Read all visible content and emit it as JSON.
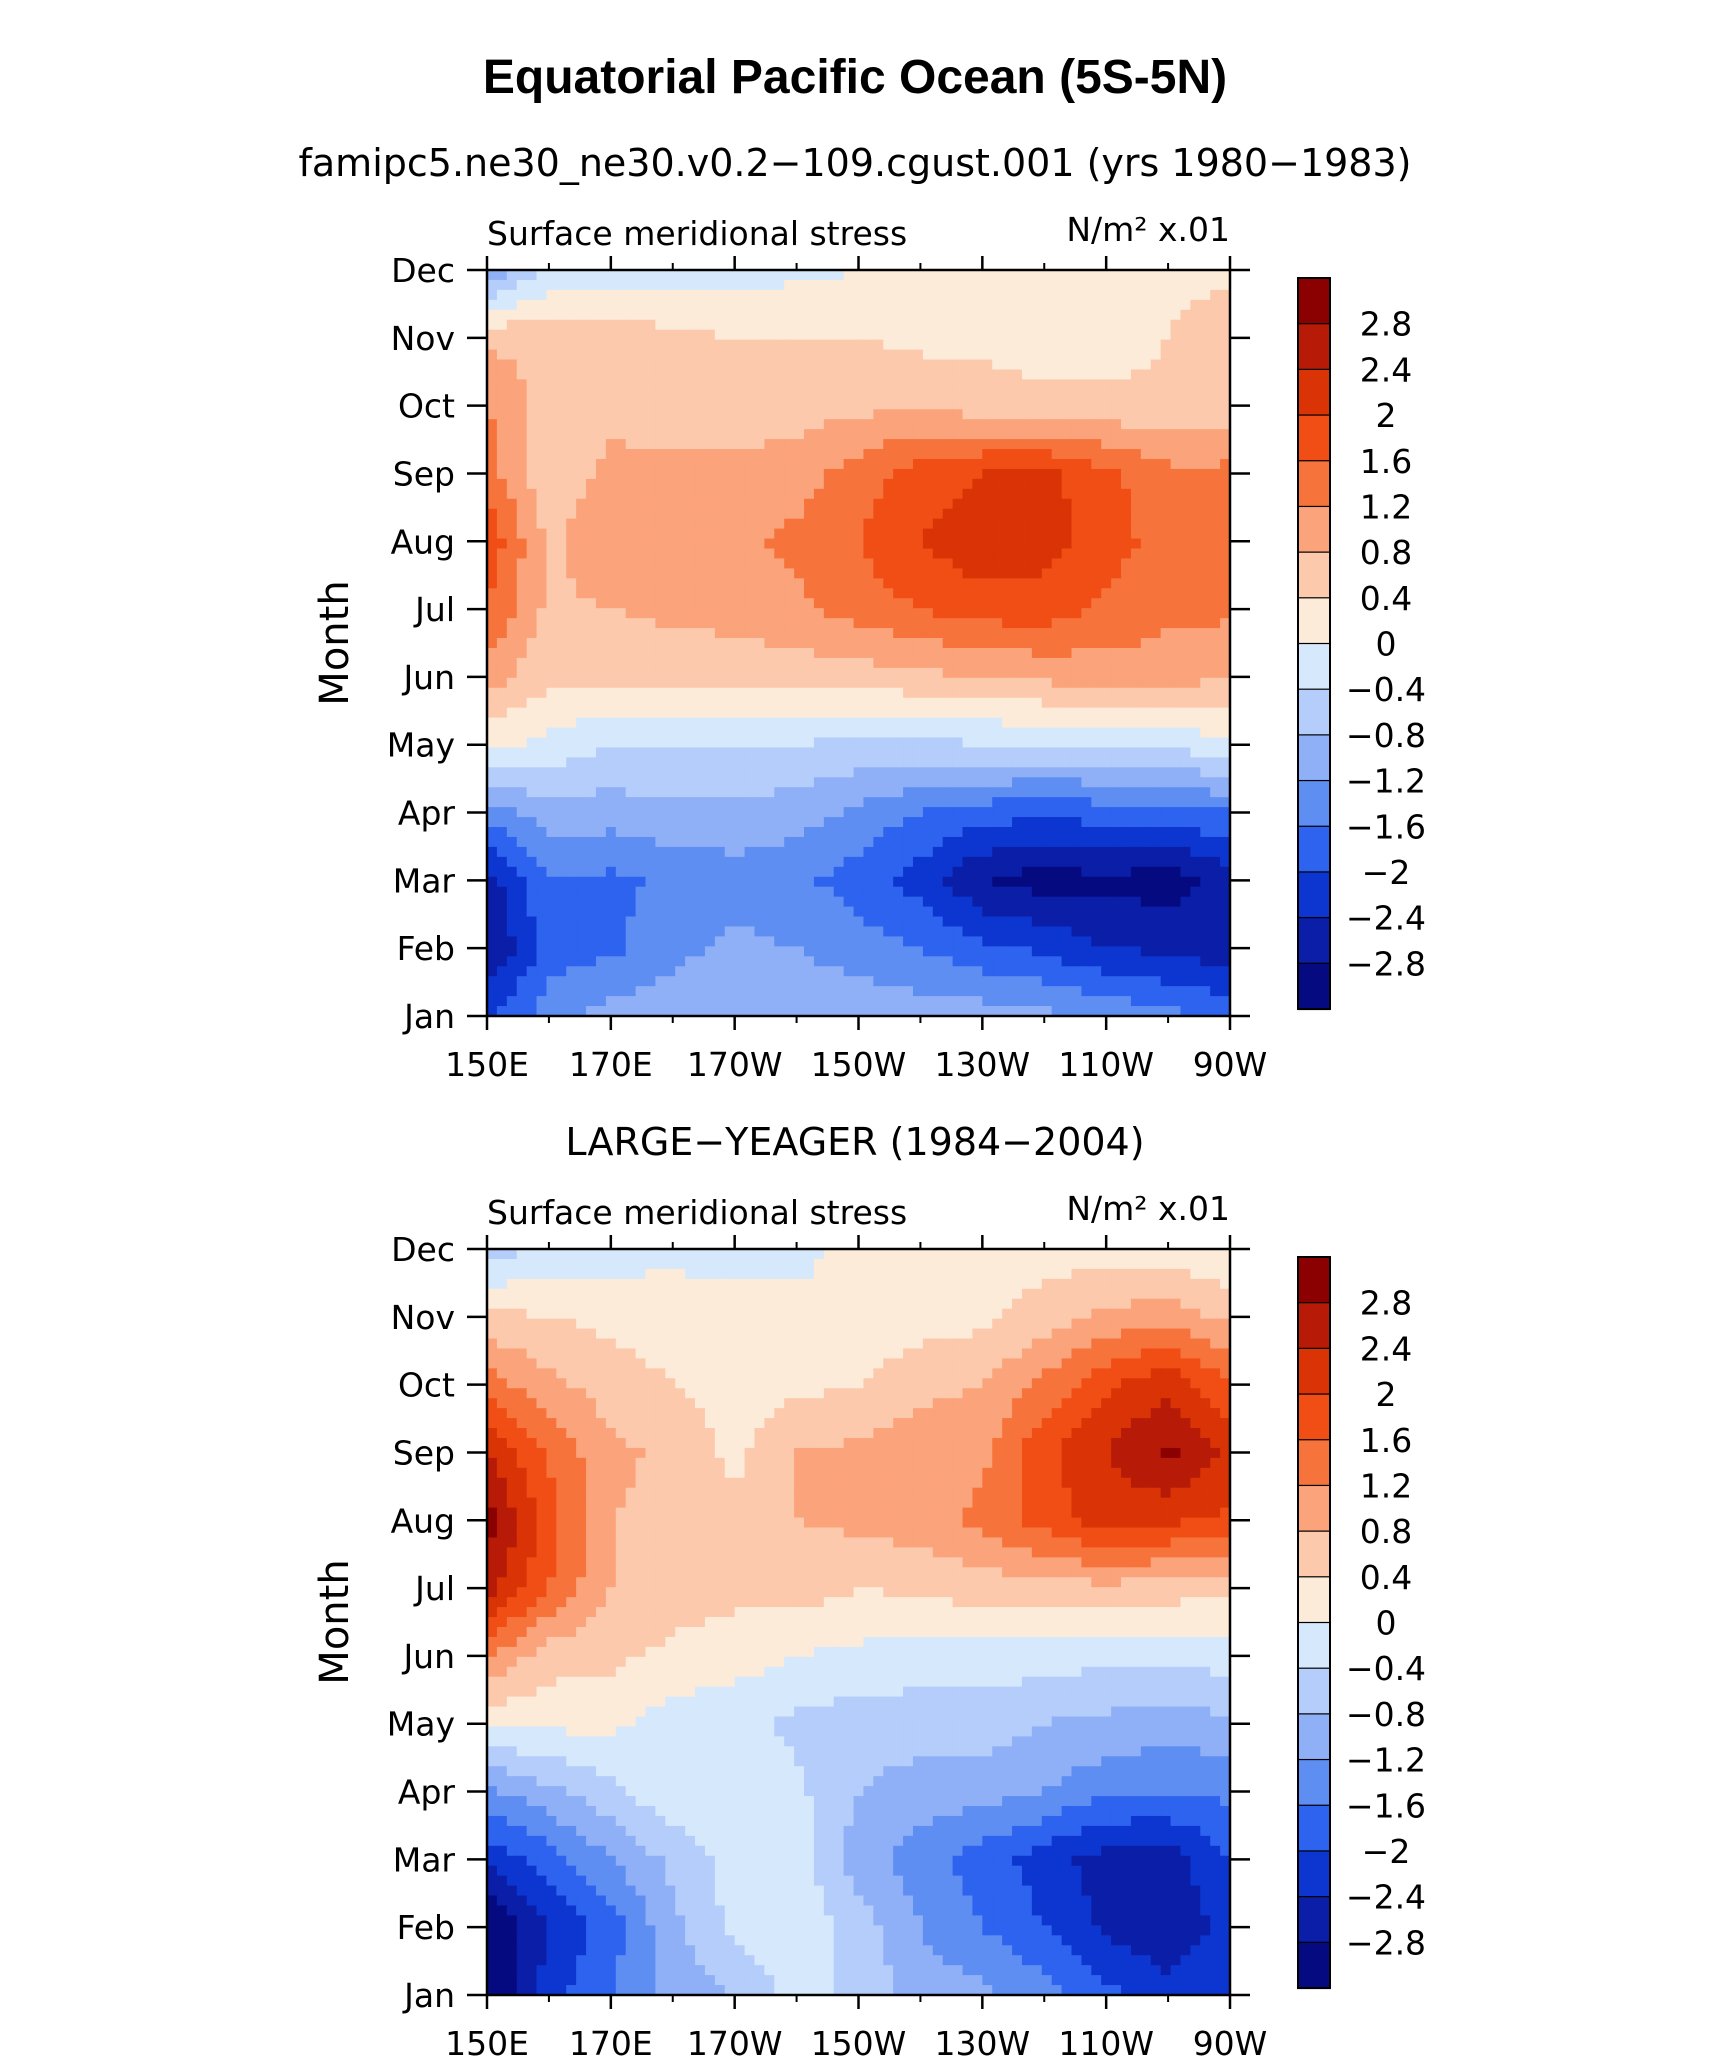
{
  "figure": {
    "title": "Equatorial Pacific Ocean (5S-5N)"
  },
  "colorbar": {
    "labels": [
      "2.8",
      "2.4",
      "2",
      "1.6",
      "1.2",
      "0.8",
      "0.4",
      "0",
      "−0.4",
      "−0.8",
      "−1.2",
      "−1.6",
      "−2",
      "−2.4",
      "−2.8"
    ],
    "colors": [
      "#8b0000",
      "#b71b08",
      "#d93306",
      "#f04e14",
      "#f7733c",
      "#fba37a",
      "#fcc9ad",
      "#fdebd9",
      "#d6e8fc",
      "#b4cdfa",
      "#8fb0f7",
      "#5f8ef3",
      "#2d63ef",
      "#0d36d1",
      "#0a1ea8",
      "#050a80"
    ]
  },
  "chart_data": [
    {
      "type": "heatmap",
      "subtitle": "famipc5.ne30_ne30.v0.2−109.cgust.001 (yrs 1980−1983)",
      "variable_label": "Surface meridional stress",
      "units_label": "N/m² x.01",
      "ylabel": "Month",
      "x_ticks": [
        "150E",
        "170E",
        "170W",
        "150W",
        "130W",
        "110W",
        "90W"
      ],
      "x_lon": [
        150,
        160,
        170,
        180,
        190,
        200,
        210,
        220,
        230,
        240,
        250,
        260,
        270
      ],
      "y_ticks": [
        "Jan",
        "Feb",
        "Mar",
        "Apr",
        "May",
        "Jun",
        "Jul",
        "Aug",
        "Sep",
        "Oct",
        "Nov",
        "Dec"
      ],
      "values": [
        [
          -2.0,
          -1.4,
          -1.0,
          -1.0,
          -0.9,
          -0.9,
          -0.9,
          -1.0,
          -1.0,
          -1.1,
          -1.3,
          -1.5,
          -1.7
        ],
        [
          -2.9,
          -1.8,
          -1.7,
          -1.3,
          -1.1,
          -1.2,
          -1.4,
          -1.6,
          -1.9,
          -2.1,
          -2.4,
          -2.5,
          -2.7
        ],
        [
          -2.6,
          -1.6,
          -1.7,
          -1.5,
          -1.4,
          -1.5,
          -1.8,
          -2.2,
          -2.8,
          -3.0,
          -2.9,
          -3.0,
          -2.6
        ],
        [
          -1.4,
          -1.0,
          -1.0,
          -0.9,
          -0.9,
          -1.0,
          -1.3,
          -1.6,
          -1.8,
          -1.9,
          -1.8,
          -1.8,
          -1.6
        ],
        [
          0.1,
          -0.1,
          -0.4,
          -0.4,
          -0.4,
          -0.4,
          -0.5,
          -0.5,
          -0.4,
          -0.4,
          -0.4,
          -0.3,
          -0.1
        ],
        [
          1.0,
          0.5,
          0.5,
          0.5,
          0.5,
          0.6,
          0.6,
          0.7,
          0.8,
          0.9,
          1.0,
          1.0,
          0.8
        ],
        [
          1.6,
          0.7,
          0.8,
          0.9,
          1.0,
          1.1,
          1.4,
          1.6,
          1.8,
          1.8,
          1.5,
          1.3,
          1.3
        ],
        [
          1.9,
          0.7,
          1.2,
          1.0,
          1.1,
          1.3,
          1.6,
          2.0,
          2.3,
          2.2,
          1.8,
          1.4,
          1.3
        ],
        [
          1.4,
          0.5,
          0.9,
          0.9,
          0.9,
          1.0,
          1.4,
          1.8,
          2.0,
          2.1,
          1.7,
          1.3,
          1.3
        ],
        [
          1.2,
          0.6,
          0.7,
          0.6,
          0.6,
          0.6,
          0.7,
          0.7,
          0.6,
          0.5,
          0.5,
          0.5,
          0.6
        ],
        [
          0.7,
          0.7,
          0.7,
          0.5,
          0.4,
          0.4,
          0.4,
          0.3,
          0.3,
          0.2,
          0.2,
          0.4,
          0.8
        ],
        [
          -1.1,
          -0.4,
          -0.3,
          -0.2,
          -0.2,
          -0.1,
          0.0,
          0.1,
          0.2,
          0.1,
          0.1,
          0.2,
          0.3
        ]
      ]
    },
    {
      "type": "heatmap",
      "subtitle": "LARGE−YEAGER (1984−2004)",
      "variable_label": "Surface meridional stress",
      "units_label": "N/m² x.01",
      "ylabel": "Month",
      "x_ticks": [
        "150E",
        "170E",
        "170W",
        "150W",
        "130W",
        "110W",
        "90W"
      ],
      "x_lon": [
        150,
        160,
        170,
        180,
        190,
        200,
        210,
        220,
        230,
        240,
        250,
        260,
        270
      ],
      "y_ticks": [
        "Jan",
        "Feb",
        "Mar",
        "Apr",
        "May",
        "Jun",
        "Jul",
        "Aug",
        "Sep",
        "Oct",
        "Nov",
        "Dec"
      ],
      "values": [
        [
          -3.2,
          -2.2,
          -1.6,
          -1.0,
          -0.8,
          -0.2,
          -0.5,
          -1.0,
          -1.1,
          -1.4,
          -1.9,
          -2.2,
          -2.0
        ],
        [
          -3.3,
          -2.4,
          -1.8,
          -0.9,
          -0.3,
          -0.1,
          -0.6,
          -1.2,
          -1.6,
          -2.0,
          -2.5,
          -2.8,
          -2.2
        ],
        [
          -2.3,
          -1.8,
          -1.2,
          -0.7,
          -0.2,
          -0.2,
          -1.0,
          -1.4,
          -1.8,
          -2.2,
          -2.6,
          -2.6,
          -2.0
        ],
        [
          -1.3,
          -0.9,
          -0.5,
          -0.1,
          -0.2,
          -0.3,
          -0.8,
          -1.0,
          -1.0,
          -1.2,
          -1.5,
          -1.6,
          -1.5
        ],
        [
          0.1,
          0.1,
          0.1,
          -0.2,
          -0.3,
          -0.5,
          -0.6,
          -0.6,
          -0.6,
          -0.8,
          -0.9,
          -1.0,
          -0.9
        ],
        [
          1.2,
          0.6,
          0.5,
          0.3,
          0.2,
          0.0,
          -0.1,
          -0.2,
          -0.2,
          -0.2,
          -0.3,
          -0.3,
          -0.2
        ],
        [
          2.6,
          1.6,
          0.8,
          0.6,
          0.5,
          0.6,
          0.4,
          0.5,
          0.6,
          0.6,
          0.7,
          0.6,
          0.5
        ],
        [
          3.0,
          1.8,
          0.8,
          0.7,
          0.5,
          0.8,
          0.9,
          1.0,
          1.3,
          1.8,
          2.2,
          2.1,
          1.9
        ],
        [
          2.4,
          1.5,
          0.9,
          0.7,
          0.3,
          0.8,
          0.9,
          1.0,
          1.1,
          1.9,
          2.4,
          2.9,
          2.3
        ],
        [
          1.4,
          0.9,
          0.6,
          0.4,
          0.2,
          0.3,
          0.4,
          0.7,
          0.8,
          1.3,
          1.9,
          2.3,
          1.6
        ],
        [
          0.5,
          0.4,
          0.3,
          0.2,
          0.1,
          0.1,
          0.1,
          0.2,
          0.3,
          0.6,
          0.9,
          1.0,
          0.7
        ],
        [
          -0.6,
          -0.3,
          -0.2,
          -0.1,
          -0.1,
          -0.1,
          0.1,
          0.2,
          0.2,
          0.2,
          0.2,
          0.2,
          0.0
        ]
      ]
    }
  ]
}
